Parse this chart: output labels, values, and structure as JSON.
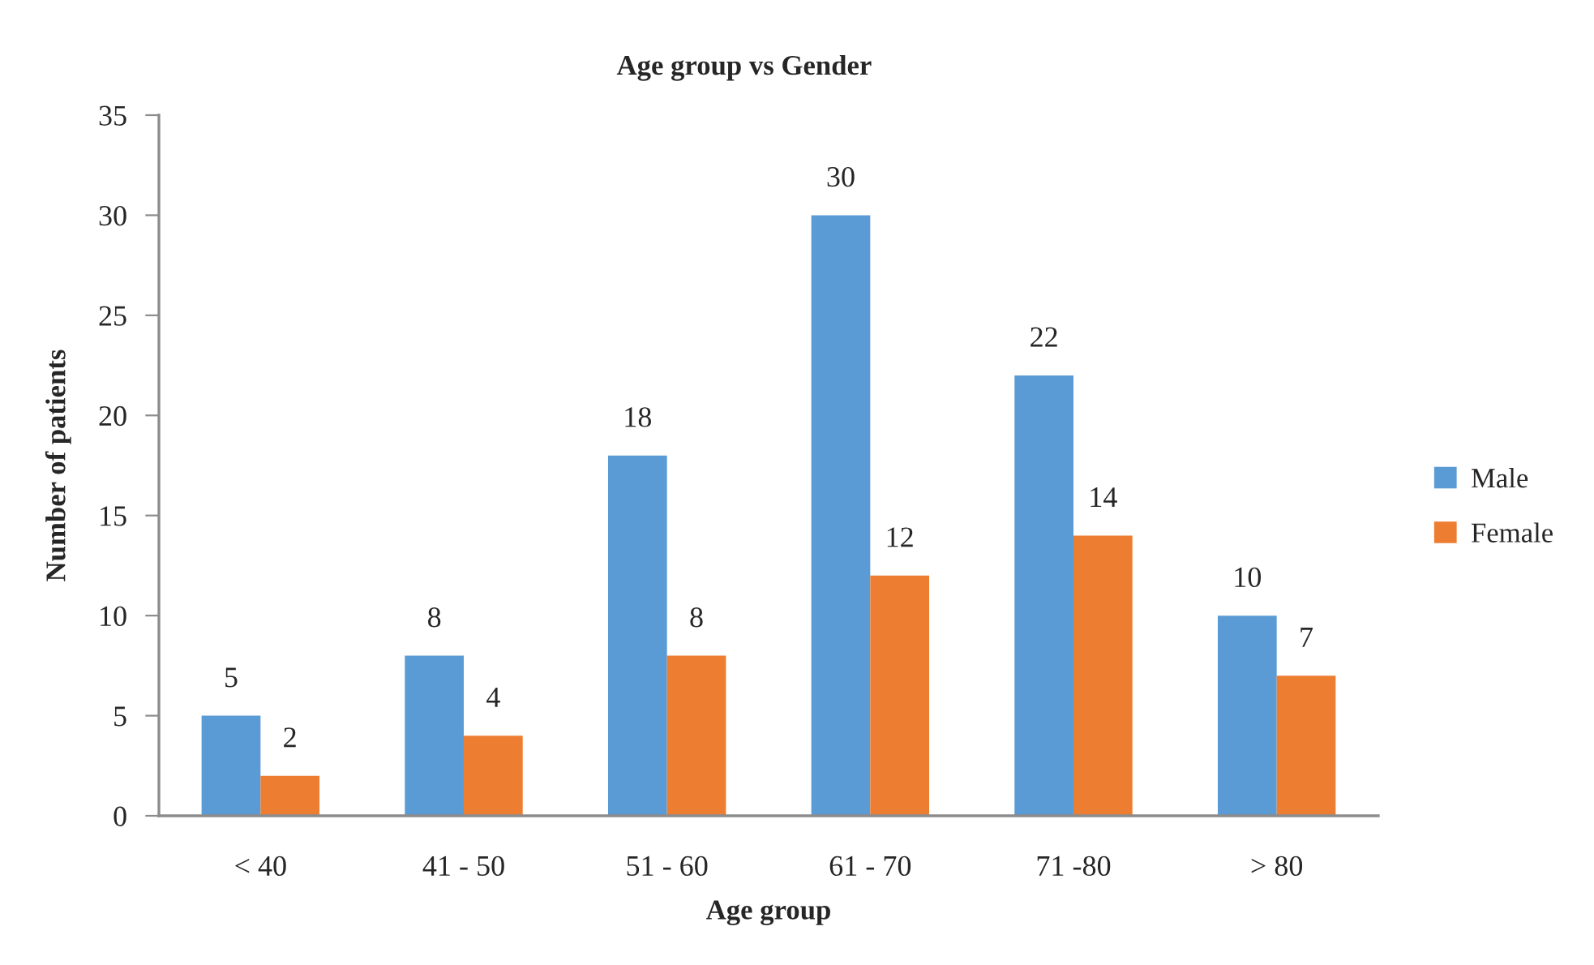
{
  "chart_data": {
    "type": "bar",
    "title": "Age group vs Gender",
    "xlabel": "Age group",
    "ylabel": "Number of patients",
    "categories": [
      "< 40",
      "41 - 50",
      "51 - 60",
      "61 - 70",
      "71 -80",
      "> 80"
    ],
    "series": [
      {
        "name": "Male",
        "color": "#5b9bd5",
        "values": [
          5,
          8,
          18,
          30,
          22,
          10
        ]
      },
      {
        "name": "Female",
        "color": "#ed7d31",
        "values": [
          2,
          4,
          8,
          12,
          14,
          7
        ]
      }
    ],
    "ylim": [
      0,
      35
    ],
    "yticks": [
      0,
      5,
      10,
      15,
      20,
      25,
      30,
      35
    ],
    "data_labels": true,
    "legend": "right"
  }
}
